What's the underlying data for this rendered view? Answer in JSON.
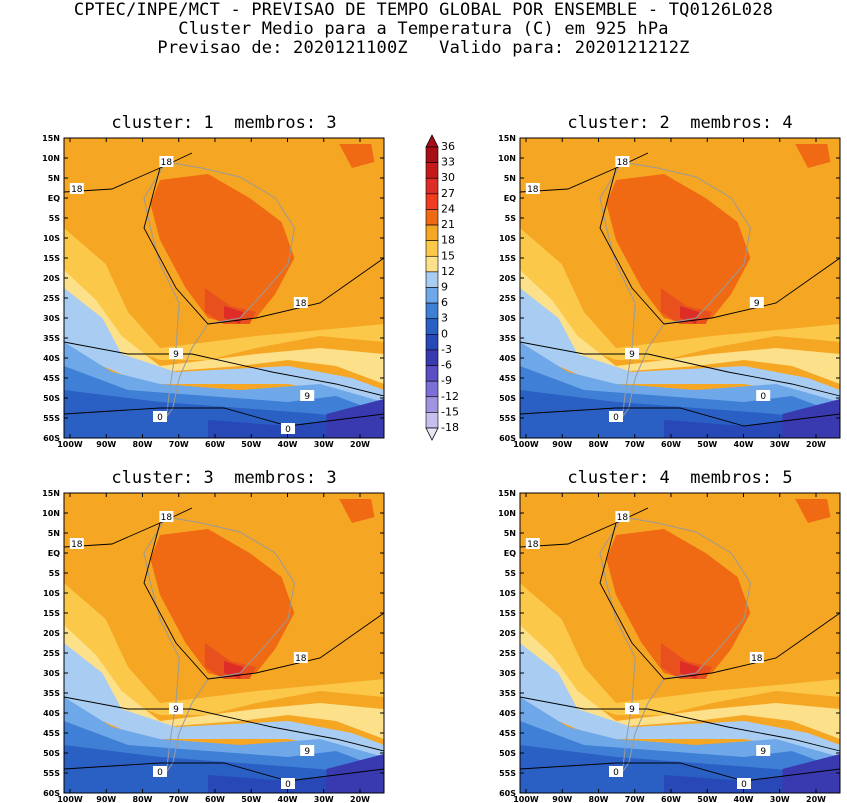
{
  "header": {
    "line1": "CPTEC/INPE/MCT - PREVISAO DE TEMPO GLOBAL POR ENSEMBLE - TQ0126L028",
    "line2": "Cluster Medio para a Temperatura (C) em 925 hPa",
    "line3": "Previsao de: 2020121100Z   Valido para: 2020121212Z"
  },
  "panels": [
    {
      "title": "cluster: 1  membros: 3",
      "contour_labels": [
        "18",
        "18",
        "18",
        "9",
        "9",
        "0",
        "0"
      ]
    },
    {
      "title": "cluster: 2  membros: 4",
      "contour_labels": [
        "18",
        "18",
        "9",
        "9",
        "0",
        "0"
      ]
    },
    {
      "title": "cluster: 3  membros: 3",
      "contour_labels": [
        "18",
        "18",
        "18",
        "9",
        "9",
        "0",
        "0"
      ]
    },
    {
      "title": "cluster: 4  membros: 5",
      "contour_labels": [
        "18",
        "18",
        "18",
        "9",
        "9",
        "0",
        "0"
      ]
    }
  ],
  "axes": {
    "lat_ticks": [
      "15N",
      "10N",
      "5N",
      "EQ",
      "5S",
      "10S",
      "15S",
      "20S",
      "25S",
      "30S",
      "35S",
      "40S",
      "45S",
      "50S",
      "55S",
      "60S"
    ],
    "lon_ticks": [
      "100W",
      "90W",
      "80W",
      "70W",
      "60W",
      "50W",
      "40W",
      "30W",
      "20W"
    ]
  },
  "colorbar": {
    "levels": [
      "36",
      "33",
      "30",
      "27",
      "24",
      "21",
      "18",
      "15",
      "12",
      "9",
      "6",
      "3",
      "0",
      "-3",
      "-6",
      "-9",
      "-12",
      "-15",
      "-18"
    ],
    "colors": [
      "#a50f15",
      "#c41a1a",
      "#de2d26",
      "#f03b20",
      "#f06a14",
      "#f5a623",
      "#fbc84a",
      "#fde08a",
      "#a9cdf2",
      "#6fa8e8",
      "#3f7fd6",
      "#2a5fc4",
      "#2848b8",
      "#3a3ab0",
      "#5a4ec4",
      "#7c70d6",
      "#9e94e2",
      "#c6c0ee"
    ]
  }
}
